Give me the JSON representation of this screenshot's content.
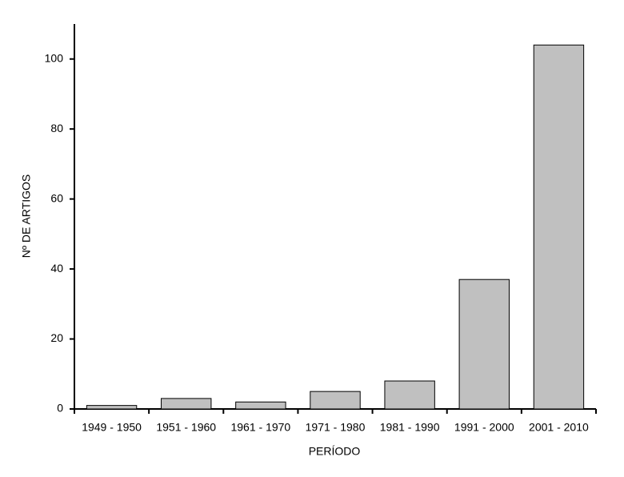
{
  "chart_data": {
    "type": "bar",
    "categories": [
      "1949 - 1950",
      "1951 - 1960",
      "1961 - 1970",
      "1971 - 1980",
      "1981 - 1990",
      "1991 - 2000",
      "2001 - 2010"
    ],
    "values": [
      1,
      3,
      2,
      5,
      8,
      37,
      104
    ],
    "color": "#c0c0c0",
    "x_label": "PERÍODO",
    "y_label": "Nº DE ARTIGOS",
    "ylim": [
      0,
      110
    ],
    "yticks": [
      0,
      20,
      40,
      60,
      80,
      100
    ],
    "grid": false
  }
}
